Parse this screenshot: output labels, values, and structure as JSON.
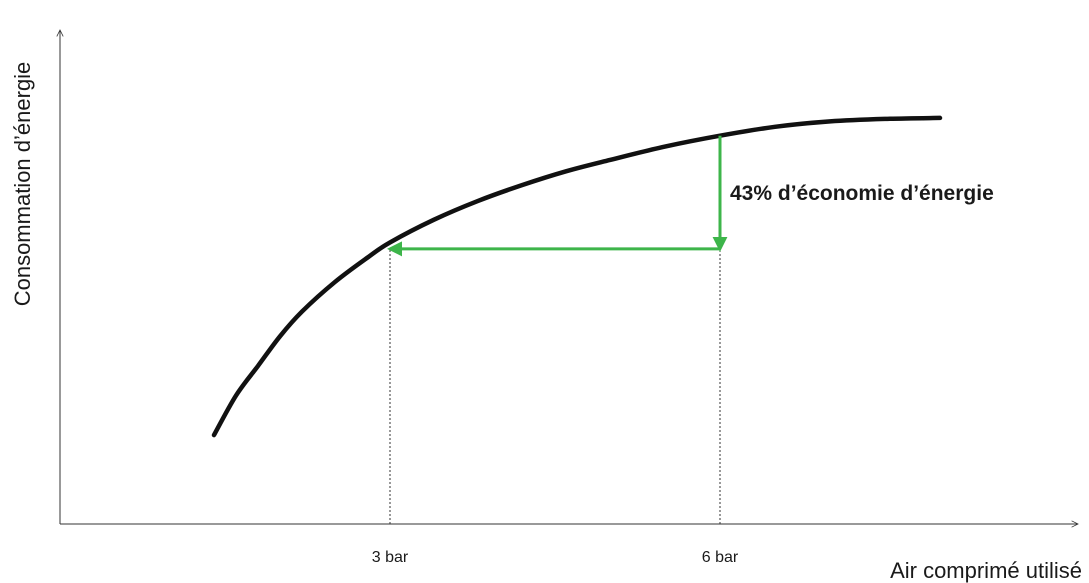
{
  "chart_data": {
    "type": "line",
    "title": "",
    "xlabel": "Air comprimé utilisé",
    "ylabel": "Consommation d’énergie",
    "xlim": [
      0,
      8
    ],
    "ylim": [
      0,
      1
    ],
    "grid": false,
    "x_ticks": [
      {
        "x": 3,
        "label": "3 bar"
      },
      {
        "x": 6,
        "label": "6 bar"
      }
    ],
    "series": [
      {
        "color": "#111111",
        "x": [
          1.4,
          1.6,
          1.8,
          2.0,
          2.2,
          2.5,
          2.8,
          3.0,
          3.4,
          3.8,
          4.2,
          4.6,
          5.0,
          5.5,
          6.0,
          6.5,
          7.0,
          7.5,
          8.0
        ],
        "y": [
          0.18,
          0.26,
          0.32,
          0.38,
          0.43,
          0.49,
          0.54,
          0.57,
          0.616,
          0.654,
          0.686,
          0.714,
          0.737,
          0.764,
          0.786,
          0.804,
          0.815,
          0.82,
          0.822
        ]
      }
    ],
    "annotation": {
      "text": "43% d’économie d’énergie",
      "color": "#3db54a",
      "at_x": 6,
      "from_y": 0.786,
      "to_y": 0.557,
      "horizontal_to_x": 3
    }
  }
}
